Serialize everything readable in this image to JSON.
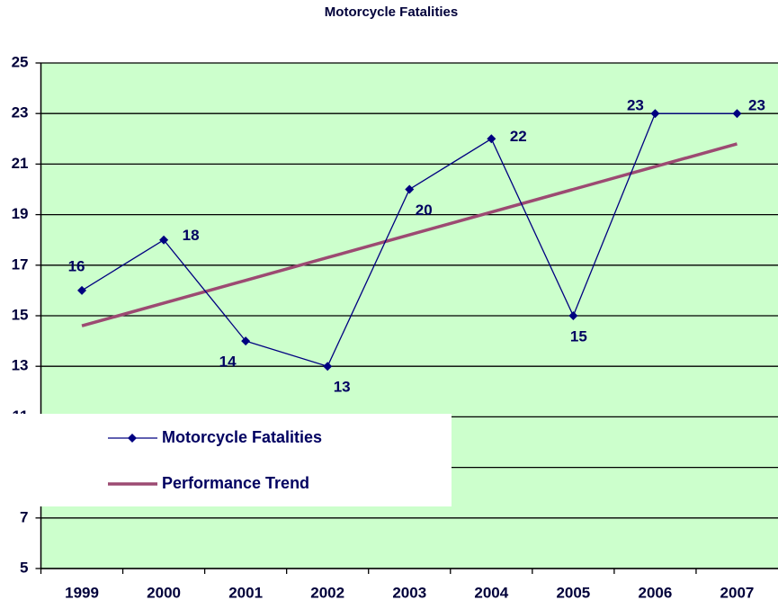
{
  "chart_data": {
    "type": "line",
    "title": "Motorcycle Fatalities",
    "categories": [
      "1999",
      "2000",
      "2001",
      "2002",
      "2003",
      "2004",
      "2005",
      "2006",
      "2007"
    ],
    "series": [
      {
        "name": "Motorcycle Fatalities",
        "color": "#000080",
        "values": [
          16,
          18,
          14,
          13,
          20,
          22,
          15,
          23,
          23
        ]
      },
      {
        "name": "Performance Trend",
        "color": "#9c4a72",
        "values": [
          14.6,
          15.5,
          16.4,
          17.3,
          18.2,
          19.1,
          20.0,
          20.9,
          21.8
        ]
      }
    ],
    "ylim": [
      5,
      25
    ],
    "yticks": [
      5,
      7,
      9,
      11,
      13,
      15,
      17,
      19,
      21,
      23,
      25
    ],
    "grid": true,
    "background": "#ccffcc"
  }
}
